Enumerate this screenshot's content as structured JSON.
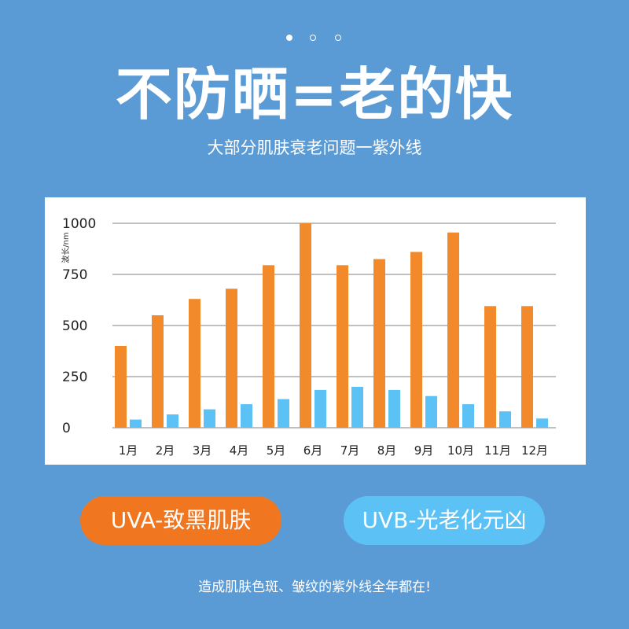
{
  "pagination": {
    "total": 3,
    "active": 0
  },
  "headline": "不防晒=老的快",
  "subtitle": "大部分肌肤衰老问题一紫外线",
  "chart_data": {
    "type": "bar",
    "ylabel": "波长/nm",
    "ylim": [
      0,
      1000
    ],
    "yticks": [
      "0",
      "250",
      "500",
      "750",
      "1000"
    ],
    "grid": true,
    "categories": [
      "1月",
      "2月",
      "3月",
      "4月",
      "5月",
      "6月",
      "7月",
      "8月",
      "9月",
      "10月",
      "11月",
      "12月"
    ],
    "series": [
      {
        "name": "UVA-致黑肌肤",
        "color": "#f28a2c",
        "values": [
          400,
          550,
          630,
          680,
          795,
          1000,
          795,
          825,
          860,
          955,
          595,
          595
        ]
      },
      {
        "name": "UVB-光老化元凶",
        "color": "#5cc1f5",
        "values": [
          40,
          65,
          90,
          115,
          140,
          185,
          200,
          185,
          155,
          115,
          80,
          45
        ]
      }
    ]
  },
  "legend": {
    "uva_label": "UVA-致黑肌肤",
    "uvb_label": "UVB-光老化元凶"
  },
  "footer": "造成肌肤色斑、皱纹的紫外线全年都在!"
}
